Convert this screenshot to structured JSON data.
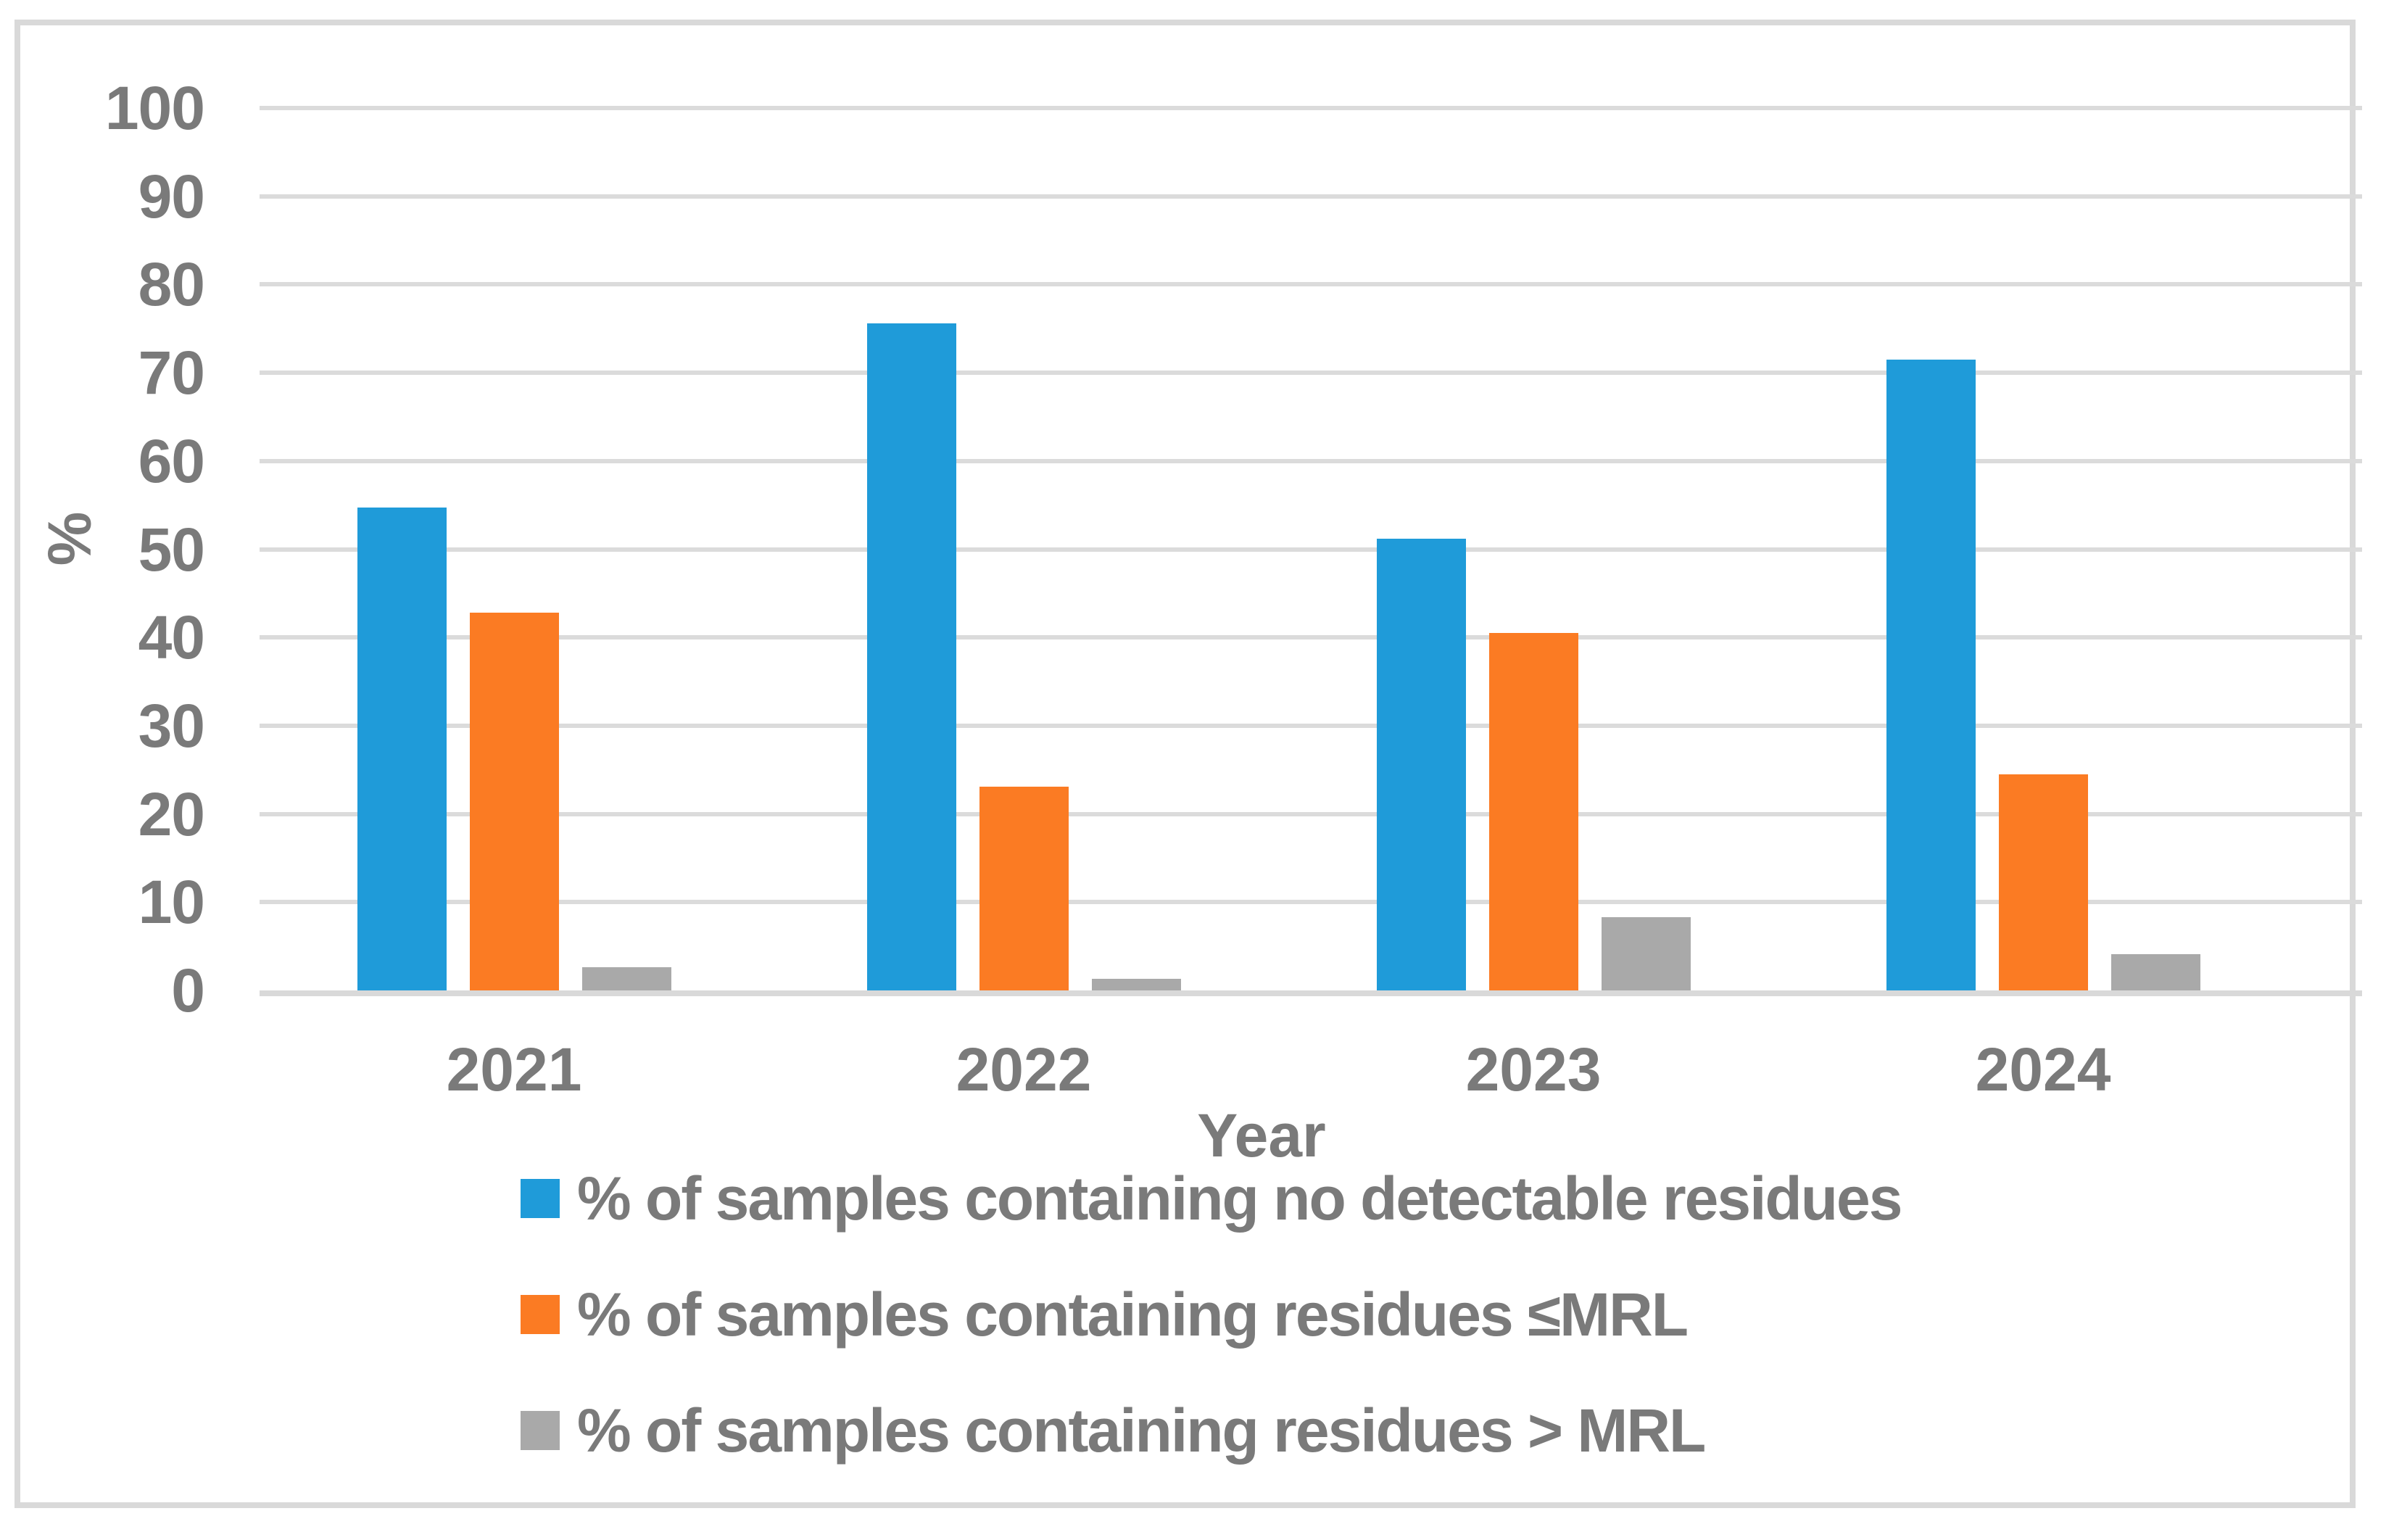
{
  "chart_data": {
    "type": "bar",
    "title": "",
    "categories": [
      "2021",
      "2022",
      "2023",
      "2024"
    ],
    "series": [
      {
        "name": "% of samples containing no detectable residues",
        "color": "#1F9BD9",
        "values": [
          54.7,
          75.6,
          51.2,
          71.5
        ]
      },
      {
        "name": "% of samples containing residues ≤MRL",
        "color": "#FB7B23",
        "values": [
          42.8,
          23.1,
          40.5,
          24.5
        ]
      },
      {
        "name": "% of samples containing residues > MRL",
        "color": "#A9A9A9",
        "values": [
          2.6,
          1.3,
          8.3,
          4.1
        ]
      }
    ],
    "xlabel": "Year",
    "ylabel": "%",
    "ylim": [
      0,
      100
    ],
    "yticks": [
      0,
      10,
      20,
      30,
      40,
      50,
      60,
      70,
      80,
      90,
      100
    ],
    "grid": true,
    "legend_position": "bottom-left stacked",
    "colors": {
      "gridline": "#DBDBDB",
      "axis_line": "#D9D9D9",
      "frame_border": "#D9D9D9",
      "text": "#7A7A7A",
      "background": "#FFFFFF"
    }
  }
}
